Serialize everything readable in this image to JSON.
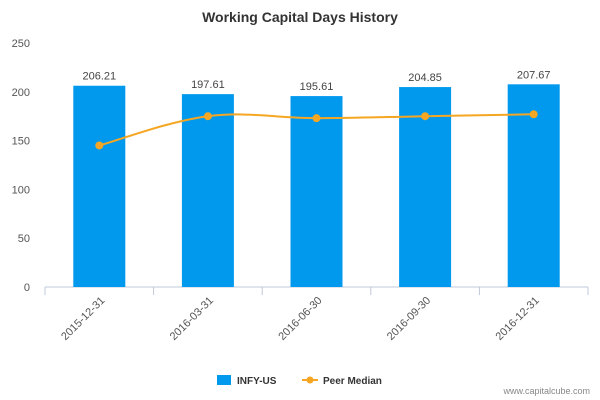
{
  "chart_data": {
    "type": "bar",
    "title": "Working Capital Days History",
    "xlabel": "",
    "ylabel": "",
    "ylim": [
      0,
      250
    ],
    "yticks": [
      0,
      50,
      100,
      150,
      200,
      250
    ],
    "categories": [
      "2015-12-31",
      "2016-03-31",
      "2016-06-30",
      "2016-09-30",
      "2016-12-31"
    ],
    "series": [
      {
        "name": "INFY-US",
        "type": "bar",
        "values": [
          206.21,
          197.61,
          195.61,
          204.85,
          207.67
        ],
        "data_labels": [
          "206.21",
          "197.61",
          "195.61",
          "204.85",
          "207.67"
        ]
      },
      {
        "name": "Peer Median",
        "type": "line",
        "values": [
          145,
          175,
          173,
          175,
          177
        ]
      }
    ],
    "grid": false,
    "legend_position": "bottom",
    "colors": {
      "bar": "#0099ee",
      "line": "#f5a623",
      "axis": "#c0c8d8",
      "text": "#555555"
    }
  },
  "footer": {
    "credit": "www.capitalcube.com"
  }
}
